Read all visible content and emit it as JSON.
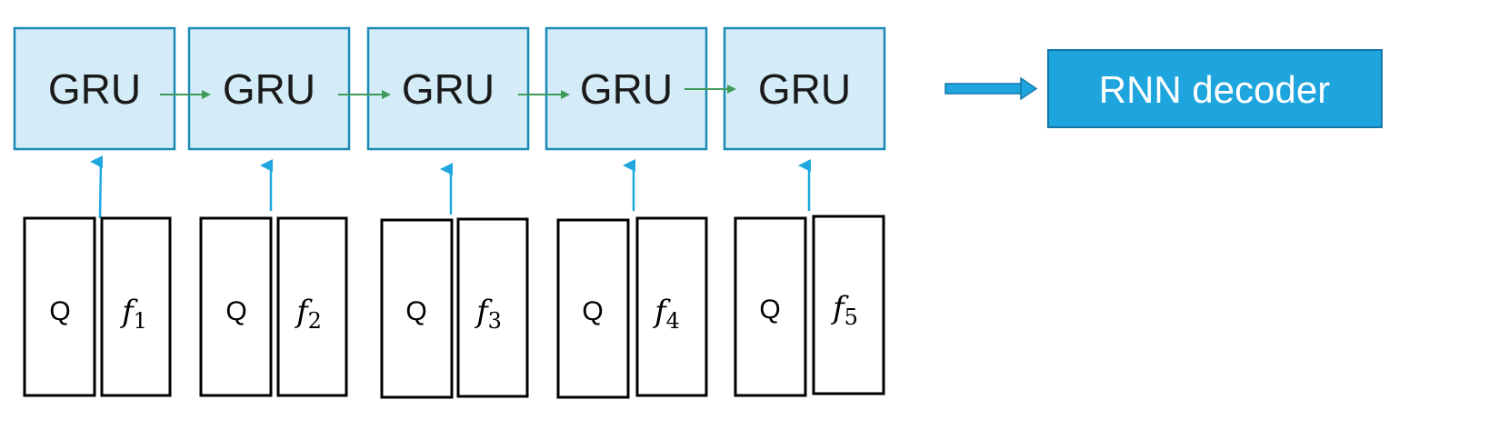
{
  "diagram": {
    "encoder_cells": [
      {
        "label": "GRU",
        "q_label": "Q",
        "f_symbol": "f",
        "f_index": "1"
      },
      {
        "label": "GRU",
        "q_label": "Q",
        "f_symbol": "f",
        "f_index": "2"
      },
      {
        "label": "GRU",
        "q_label": "Q",
        "f_symbol": "f",
        "f_index": "3"
      },
      {
        "label": "GRU",
        "q_label": "Q",
        "f_symbol": "f",
        "f_index": "4"
      },
      {
        "label": "GRU",
        "q_label": "Q",
        "f_symbol": "f",
        "f_index": "5"
      }
    ],
    "decoder": {
      "label": "RNN decoder"
    },
    "colors": {
      "gru_fill": "#d4ecf8",
      "gru_border": "#1a8ab5",
      "recurrent_arrow": "#3f9a5a",
      "input_arrow": "#1fa8e0",
      "decoder_fill": "#1ea5dd",
      "decoder_border": "#1576a8",
      "box_border": "#000000"
    }
  }
}
